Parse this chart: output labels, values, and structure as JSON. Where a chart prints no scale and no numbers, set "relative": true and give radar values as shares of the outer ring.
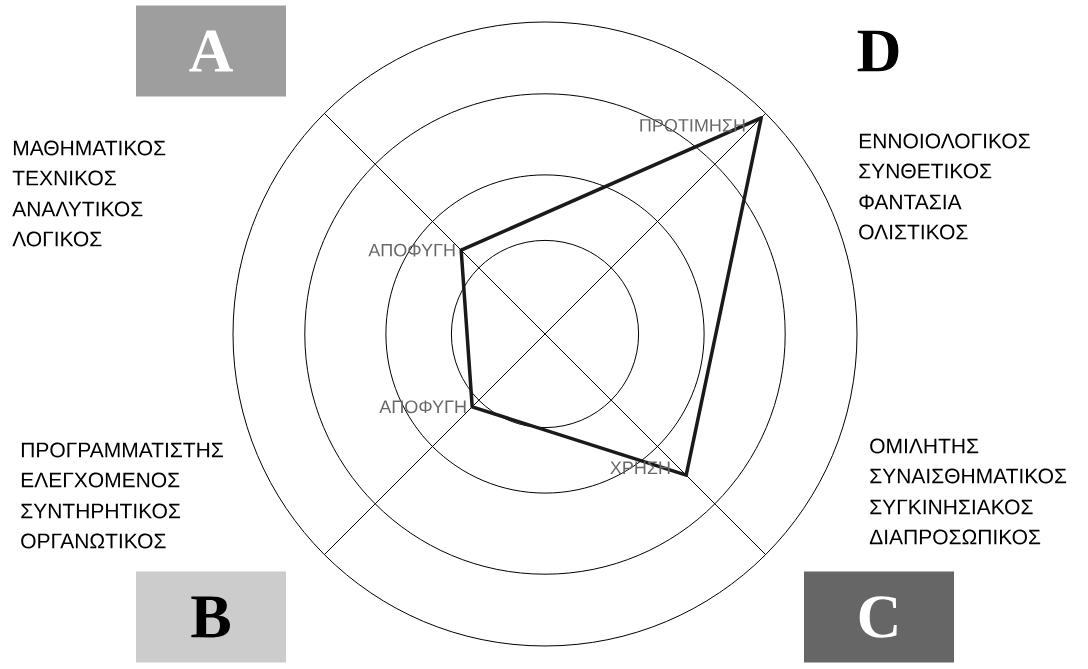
{
  "chart_data": {
    "type": "radar",
    "relative": true,
    "categories": [
      "D",
      "C",
      "B",
      "A"
    ],
    "series": [
      {
        "color": "#1a1a1a",
        "values": [
          0.98,
          0.64,
          0.33,
          0.38
        ]
      }
    ],
    "annotations": [
      {
        "text": "ΠΡΟΤΙΜΗΣΗ",
        "x": "D"
      },
      {
        "text": "ΧΡΗΣΗ",
        "x": "C"
      },
      {
        "text": "ΑΠΟΦΥΓΗ",
        "x": "B"
      },
      {
        "text": "ΑΠΟΦΥΓΗ",
        "x": "A"
      },
      "ΕΝΝΟΙΟΛΟΓΙΚΟΣ",
      "ΣΥΝΘΕΤΙΚΟΣ",
      "ΦΑΝΤΑΣΙΑ",
      "ΟΛΙΣΤΙΚΟΣ",
      "ΟΜΙΛΗΤΗΣ",
      "ΣΥΝΑΙΣΘΗΜΑΤΙΚΟΣ",
      "ΣΥΓΚΙΝΗΣΙΑΚΟΣ",
      "ΔΙΑΠΡΟΣΩΠΙΚΟΣ",
      "ΠΡΟΓΡΑΜΜΑΤΙΣΤΗΣ",
      "ΕΛΕΓΧΟΜΕΝΟΣ",
      "ΣΥΝΤΗΡΗΤΙΚΟΣ",
      "ΟΡΓΑΝΩΤΙΚΟΣ",
      "ΜΑΘΗΜΑΤΙΚΟΣ",
      "ΤΕΧΝΙΚΟΣ",
      "ΑΝΑΛΥΤΙΚΟΣ",
      "ΛΟΓΙΚΟΣ"
    ]
  }
}
